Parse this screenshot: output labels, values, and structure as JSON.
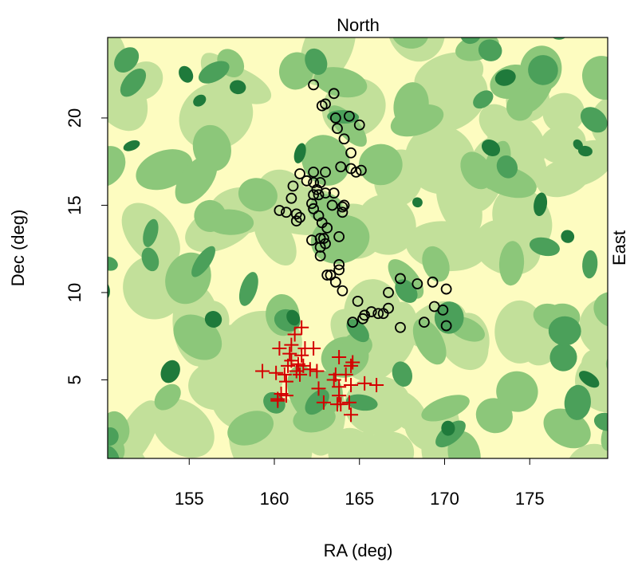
{
  "chart_data": {
    "type": "scatter",
    "title": "North",
    "right_label": "East",
    "x_label": "RA (deg)",
    "y_label": "Dec (deg)",
    "xlim": [
      150.21,
      179.58
    ],
    "ylim": [
      0.5,
      24.61
    ],
    "xticks": [
      155,
      160,
      165,
      170,
      175
    ],
    "yticks": [
      5,
      10,
      15,
      20
    ],
    "background_colors": [
      "#fdfcc0",
      "#c2e09a",
      "#8cc77a",
      "#4ba05a",
      "#1f7a3b"
    ],
    "series": [
      {
        "marker": "circle",
        "color": "#000000",
        "x": [
          162.3,
          163.5,
          162.8,
          163.0,
          163.6,
          164.4,
          165.0,
          163.7,
          164.1,
          164.5,
          164.5,
          163.9,
          164.8,
          165.1,
          163.0,
          162.3,
          161.5,
          161.9,
          161.1,
          161.0,
          162.3,
          162.7,
          162.5,
          162.6,
          162.3,
          162.2,
          162.3,
          163.5,
          163.0,
          163.4,
          164.0,
          164.1,
          164.0,
          160.3,
          160.7,
          161.3,
          161.5,
          161.3,
          162.6,
          162.8,
          163.1,
          162.7,
          162.2,
          162.7,
          162.9,
          163.0,
          163.8,
          162.7,
          163.8,
          163.8,
          163.1,
          163.6,
          164.0,
          163.3,
          164.9,
          164.6,
          165.3,
          165.2,
          165.7,
          166.1,
          166.4,
          166.7,
          166.7,
          167.4,
          168.4,
          169.3,
          170.1,
          169.4,
          169.9,
          168.8,
          167.4,
          170.1
        ],
        "y": [
          21.9,
          21.4,
          20.7,
          20.8,
          20.0,
          20.1,
          19.6,
          19.4,
          18.8,
          18.0,
          17.1,
          17.2,
          16.9,
          17.0,
          16.9,
          16.9,
          16.8,
          16.4,
          16.1,
          15.4,
          16.3,
          16.3,
          15.9,
          15.6,
          15.6,
          15.1,
          14.8,
          15.7,
          15.7,
          15.0,
          14.9,
          15.0,
          14.6,
          14.7,
          14.6,
          14.5,
          14.3,
          14.1,
          14.4,
          14.0,
          13.7,
          13.1,
          13.0,
          12.6,
          13.1,
          12.8,
          13.2,
          12.1,
          11.6,
          11.3,
          11.0,
          10.6,
          10.1,
          11.0,
          9.5,
          8.3,
          8.7,
          8.5,
          8.9,
          8.8,
          8.8,
          9.1,
          10.0,
          10.8,
          10.5,
          10.6,
          10.2,
          9.2,
          9.0,
          8.3,
          8.0,
          8.1
        ]
      },
      {
        "marker": "plus",
        "color": "#d40000",
        "x": [
          161.6,
          161.2,
          161.0,
          160.3,
          161.8,
          162.3,
          160.9,
          161.6,
          161.0,
          161.4,
          161.7,
          160.8,
          161.3,
          162.1,
          162.5,
          163.8,
          164.6,
          164.5,
          161.5,
          160.6,
          160.1,
          159.3,
          163.6,
          164.2,
          163.5,
          164.5,
          165.3,
          166.0,
          160.7,
          162.6,
          163.8,
          160.4,
          160.7,
          160.2,
          162.9,
          163.7,
          163.9,
          164.4,
          163.8,
          164.5,
          160.2
        ],
        "y": [
          8.0,
          7.6,
          7.0,
          6.8,
          6.8,
          6.8,
          6.5,
          6.4,
          6.1,
          5.9,
          5.8,
          5.8,
          5.5,
          5.6,
          5.5,
          6.3,
          6.0,
          5.8,
          5.3,
          5.3,
          5.4,
          5.5,
          5.3,
          5.3,
          5.0,
          4.7,
          4.8,
          4.7,
          4.9,
          4.5,
          4.6,
          4.2,
          4.1,
          3.9,
          3.7,
          3.6,
          3.6,
          3.7,
          4.1,
          3.0,
          3.8
        ]
      }
    ]
  }
}
